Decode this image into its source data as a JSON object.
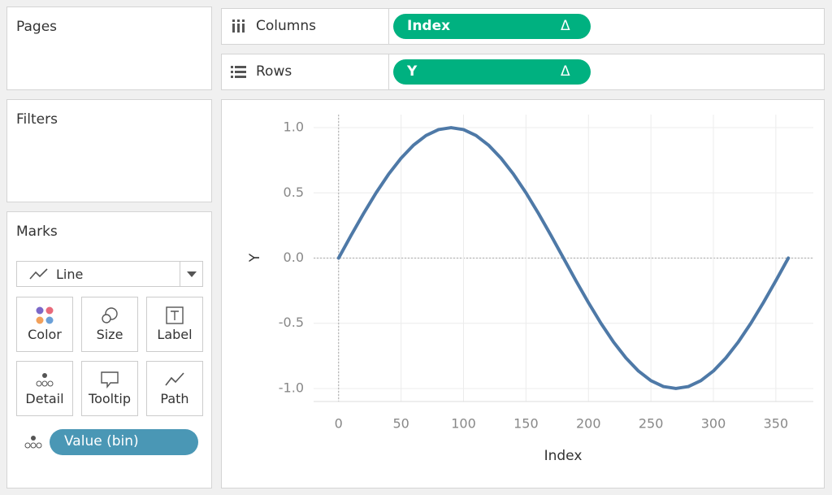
{
  "pages_panel": {
    "title": "Pages"
  },
  "filters_panel": {
    "title": "Filters"
  },
  "marks_panel": {
    "title": "Marks",
    "mark_type": "Line",
    "buttons": [
      "Color",
      "Size",
      "Label",
      "Detail",
      "Tooltip",
      "Path"
    ],
    "detail_pill": "Value (bin)"
  },
  "shelves": {
    "columns": {
      "label": "Columns",
      "pill": "Index",
      "pill_icon": "Δ"
    },
    "rows": {
      "label": "Rows",
      "pill": "Y",
      "pill_icon": "Δ"
    }
  },
  "chart_data": {
    "type": "line",
    "x_label": "Index",
    "y_label": "Y",
    "x": [
      0,
      10,
      20,
      30,
      40,
      50,
      60,
      70,
      80,
      90,
      100,
      110,
      120,
      130,
      140,
      150,
      160,
      170,
      180,
      190,
      200,
      210,
      220,
      230,
      240,
      250,
      260,
      270,
      280,
      290,
      300,
      310,
      320,
      330,
      340,
      350,
      360
    ],
    "values": [
      0,
      0.174,
      0.342,
      0.5,
      0.643,
      0.766,
      0.866,
      0.94,
      0.985,
      1,
      0.985,
      0.94,
      0.866,
      0.766,
      0.643,
      0.5,
      0.342,
      0.174,
      0,
      -0.174,
      -0.342,
      -0.5,
      -0.643,
      -0.766,
      -0.866,
      -0.94,
      -0.985,
      -1,
      -0.985,
      -0.94,
      -0.866,
      -0.766,
      -0.643,
      -0.5,
      -0.342,
      -0.174,
      0
    ],
    "color": "#4e79a7",
    "xlim": [
      -20,
      380
    ],
    "xticks": [
      0,
      50,
      100,
      150,
      200,
      250,
      300,
      350
    ],
    "ylim": [
      -1.1,
      1.1
    ],
    "yticks": [
      {
        "value": 1,
        "label": "1.0"
      },
      0.5,
      {
        "value": 0,
        "label": "0.0"
      },
      -0.5,
      {
        "value": -1,
        "label": "-1.0"
      }
    ],
    "grid": true,
    "zero_lines": true
  }
}
